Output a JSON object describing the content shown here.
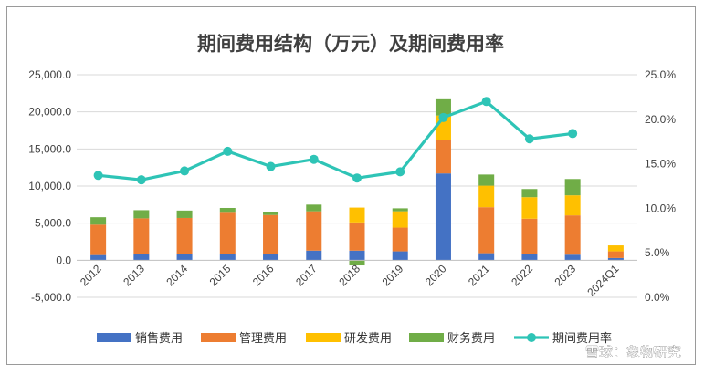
{
  "chart_data": {
    "type": "bar",
    "title": "期间费用结构（万元）及期间费用率",
    "categories": [
      "2012",
      "2013",
      "2014",
      "2015",
      "2016",
      "2017",
      "2018",
      "2019",
      "2020",
      "2021",
      "2022",
      "2023",
      "2024Q1"
    ],
    "ylim": [
      -5000,
      25000
    ],
    "y_ticks": [
      "25,000.0",
      "20,000.0",
      "15,000.0",
      "10,000.0",
      "5,000.0",
      "0.0",
      "-5,000.0"
    ],
    "y2lim": [
      0,
      25
    ],
    "y2_ticks": [
      "25.0%",
      "20.0%",
      "15.0%",
      "10.0%",
      "5.0%",
      "0.0%"
    ],
    "stacked": true,
    "grid": true,
    "legend_position": "bottom",
    "series": [
      {
        "name": "销售费用",
        "color": "#4472C4",
        "values": [
          700,
          850,
          800,
          900,
          900,
          1300,
          1300,
          1200,
          11700,
          950,
          800,
          750,
          300
        ]
      },
      {
        "name": "管理费用",
        "color": "#ED7D31",
        "values": [
          4100,
          4800,
          4900,
          5500,
          5200,
          5300,
          3800,
          3200,
          4500,
          6200,
          4800,
          5300,
          900
        ]
      },
      {
        "name": "研发费用",
        "color": "#FFC000",
        "values": [
          0,
          0,
          0,
          0,
          0,
          0,
          2000,
          2200,
          3300,
          2900,
          2900,
          2700,
          800
        ]
      },
      {
        "name": "财务费用",
        "color": "#70AD47",
        "values": [
          1000,
          1100,
          1000,
          650,
          400,
          900,
          -700,
          400,
          2200,
          1500,
          1100,
          2200,
          0
        ]
      }
    ],
    "line_series": {
      "name": "期间费用率",
      "color": "#2EC4B6",
      "axis": "right",
      "values": [
        13.7,
        13.2,
        14.2,
        16.4,
        14.7,
        15.5,
        13.4,
        14.1,
        20.2,
        22.0,
        17.8,
        18.4,
        null
      ]
    }
  },
  "watermark": "雪球：象物研究"
}
